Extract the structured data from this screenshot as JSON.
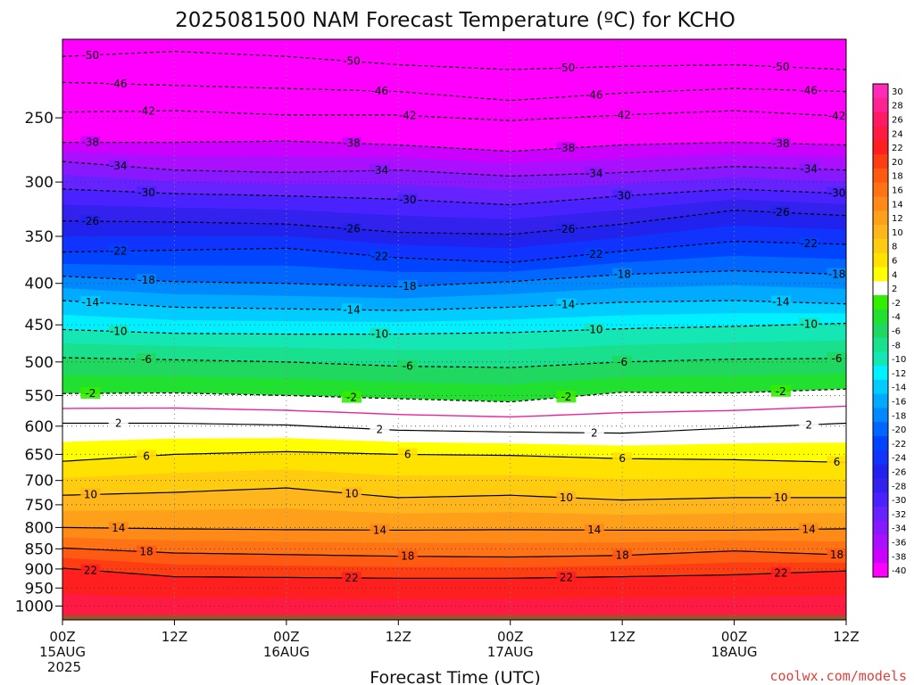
{
  "title": "2025081500 NAM Forecast Temperature (ºC) for KCHO",
  "xlabel": "Forecast Time (UTC)",
  "credit": "coolwx.com/models",
  "colors": {
    "credit": "#e0403a",
    "ground": "#a0522d",
    "freezing_line": "#e8239b"
  },
  "chart_data": {
    "type": "heatmap",
    "title": "2025081500 NAM Forecast Temperature (ºC) for KCHO",
    "xlabel": "Forecast Time (UTC)",
    "ylabel": "",
    "y_axis": "pressure (inverted)",
    "ylim": [
      1040,
      200
    ],
    "xlim_hours": [
      0,
      84
    ],
    "y_ticks": [
      250,
      300,
      350,
      400,
      450,
      500,
      550,
      600,
      650,
      700,
      750,
      800,
      850,
      900,
      950,
      1000
    ],
    "x_ticks": [
      {
        "hour": 0,
        "lines": [
          "00Z",
          "15AUG",
          "2025"
        ]
      },
      {
        "hour": 12,
        "lines": [
          "12Z"
        ]
      },
      {
        "hour": 24,
        "lines": [
          "00Z",
          "16AUG"
        ]
      },
      {
        "hour": 36,
        "lines": [
          "12Z"
        ]
      },
      {
        "hour": 48,
        "lines": [
          "00Z",
          "17AUG"
        ]
      },
      {
        "hour": 60,
        "lines": [
          "12Z"
        ]
      },
      {
        "hour": 72,
        "lines": [
          "00Z",
          "18AUG"
        ]
      },
      {
        "hour": 84,
        "lines": [
          "12Z"
        ]
      }
    ],
    "grid": true,
    "legend": "colorbar-right",
    "colorbar": {
      "labels": [
        "30",
        "28",
        "26",
        "24",
        "22",
        "20",
        "18",
        "16",
        "14",
        "12",
        "10",
        "8",
        "6",
        "4",
        "2",
        "-2",
        "-4",
        "-6",
        "-8",
        "-10",
        "-12",
        "-14",
        "-16",
        "-18",
        "-20",
        "-22",
        "-24",
        "-26",
        "-28",
        "-30",
        "-32",
        "-34",
        "-36",
        "-38",
        "-40"
      ],
      "colors": [
        "#ff2ab8",
        "#ff2290",
        "#ff1a66",
        "#ff1a44",
        "#ff1f1f",
        "#ff3d12",
        "#ff5a12",
        "#ff7314",
        "#ff8a18",
        "#ffa01a",
        "#ffb51c",
        "#ffcc10",
        "#ffe200",
        "#ffff00",
        "#ffffff",
        "#33ee00",
        "#22e030",
        "#20d860",
        "#19e08c",
        "#14e6b4",
        "#00f0ff",
        "#00ccff",
        "#00aaff",
        "#0088ff",
        "#0066ff",
        "#0044ff",
        "#1133ff",
        "#2222ee",
        "#3322ee",
        "#4a22ff",
        "#6622ff",
        "#8818ff",
        "#aa10ff",
        "#cc00ff",
        "#ff00ff"
      ]
    },
    "ground_below_hpa": 1000,
    "series": [
      {
        "value": -50,
        "labels": [
          "-50"
        ],
        "points": [
          [
            0,
            210
          ],
          [
            12,
            207
          ],
          [
            24,
            210
          ],
          [
            36,
            215
          ],
          [
            48,
            218
          ],
          [
            60,
            216
          ],
          [
            72,
            215
          ],
          [
            84,
            218
          ]
        ]
      },
      {
        "value": -46,
        "labels": [
          "-46"
        ],
        "points": [
          [
            0,
            226
          ],
          [
            12,
            228
          ],
          [
            24,
            230
          ],
          [
            36,
            232
          ],
          [
            48,
            238
          ],
          [
            60,
            233
          ],
          [
            72,
            230
          ],
          [
            84,
            232
          ]
        ]
      },
      {
        "value": -42,
        "labels": [
          "-42"
        ],
        "points": [
          [
            0,
            246
          ],
          [
            12,
            245
          ],
          [
            24,
            248
          ],
          [
            36,
            248
          ],
          [
            48,
            252
          ],
          [
            60,
            248
          ],
          [
            72,
            245
          ],
          [
            84,
            249
          ]
        ]
      },
      {
        "value": -38,
        "labels": [
          "-38"
        ],
        "points": [
          [
            0,
            268
          ],
          [
            12,
            268
          ],
          [
            24,
            267
          ],
          [
            36,
            270
          ],
          [
            48,
            275
          ],
          [
            60,
            270
          ],
          [
            72,
            268
          ],
          [
            84,
            270
          ]
        ]
      },
      {
        "value": -34,
        "labels": [
          "-34"
        ],
        "points": [
          [
            0,
            283
          ],
          [
            12,
            290
          ],
          [
            24,
            292
          ],
          [
            36,
            290
          ],
          [
            48,
            295
          ],
          [
            60,
            292
          ],
          [
            72,
            287
          ],
          [
            84,
            290
          ]
        ]
      },
      {
        "value": -30,
        "labels": [
          "-30"
        ],
        "points": [
          [
            0,
            306
          ],
          [
            12,
            310
          ],
          [
            24,
            312
          ],
          [
            36,
            315
          ],
          [
            48,
            320
          ],
          [
            60,
            312
          ],
          [
            72,
            306
          ],
          [
            84,
            310
          ]
        ]
      },
      {
        "value": -26,
        "labels": [
          "-26"
        ],
        "points": [
          [
            0,
            335
          ],
          [
            12,
            336
          ],
          [
            24,
            338
          ],
          [
            36,
            346
          ],
          [
            48,
            348
          ],
          [
            60,
            338
          ],
          [
            72,
            325
          ],
          [
            84,
            330
          ]
        ]
      },
      {
        "value": -22,
        "labels": [
          "-22"
        ],
        "points": [
          [
            0,
            366
          ],
          [
            12,
            364
          ],
          [
            24,
            362
          ],
          [
            36,
            372
          ],
          [
            48,
            377
          ],
          [
            60,
            365
          ],
          [
            72,
            355
          ],
          [
            84,
            358
          ]
        ]
      },
      {
        "value": -18,
        "labels": [
          "-18"
        ],
        "points": [
          [
            0,
            392
          ],
          [
            12,
            398
          ],
          [
            24,
            400
          ],
          [
            36,
            404
          ],
          [
            48,
            398
          ],
          [
            60,
            390
          ],
          [
            72,
            386
          ],
          [
            84,
            390
          ]
        ]
      },
      {
        "value": -14,
        "labels": [
          "-14"
        ],
        "points": [
          [
            0,
            420
          ],
          [
            12,
            428
          ],
          [
            24,
            430
          ],
          [
            36,
            432
          ],
          [
            48,
            428
          ],
          [
            60,
            422
          ],
          [
            72,
            420
          ],
          [
            84,
            424
          ]
        ]
      },
      {
        "value": -10,
        "labels": [
          "-10"
        ],
        "points": [
          [
            0,
            456
          ],
          [
            12,
            461
          ],
          [
            24,
            462
          ],
          [
            36,
            462
          ],
          [
            48,
            460
          ],
          [
            60,
            455
          ],
          [
            72,
            452
          ],
          [
            84,
            448
          ]
        ]
      },
      {
        "value": -6,
        "labels": [
          "-6"
        ],
        "points": [
          [
            0,
            494
          ],
          [
            12,
            497
          ],
          [
            24,
            500
          ],
          [
            36,
            506
          ],
          [
            48,
            508
          ],
          [
            60,
            500
          ],
          [
            72,
            496
          ],
          [
            84,
            495
          ]
        ]
      },
      {
        "value": -2,
        "labels": [
          "-2"
        ],
        "points": [
          [
            0,
            547
          ],
          [
            12,
            546
          ],
          [
            24,
            550
          ],
          [
            36,
            555
          ],
          [
            48,
            560
          ],
          [
            60,
            545
          ],
          [
            72,
            546
          ],
          [
            84,
            540
          ]
        ]
      },
      {
        "value": 2,
        "labels": [
          "2"
        ],
        "points": [
          [
            0,
            595
          ],
          [
            12,
            595
          ],
          [
            24,
            598
          ],
          [
            36,
            607
          ],
          [
            48,
            610
          ],
          [
            60,
            612
          ],
          [
            72,
            603
          ],
          [
            84,
            595
          ]
        ]
      },
      {
        "value": 6,
        "labels": [
          "6"
        ],
        "points": [
          [
            0,
            663
          ],
          [
            12,
            650
          ],
          [
            24,
            645
          ],
          [
            36,
            650
          ],
          [
            48,
            652
          ],
          [
            60,
            658
          ],
          [
            72,
            660
          ],
          [
            84,
            665
          ]
        ]
      },
      {
        "value": 10,
        "labels": [
          "10"
        ],
        "points": [
          [
            0,
            730
          ],
          [
            12,
            724
          ],
          [
            24,
            715
          ],
          [
            36,
            735
          ],
          [
            48,
            730
          ],
          [
            60,
            740
          ],
          [
            72,
            735
          ],
          [
            84,
            735
          ]
        ]
      },
      {
        "value": 14,
        "labels": [
          "14"
        ],
        "points": [
          [
            0,
            800
          ],
          [
            12,
            803
          ],
          [
            24,
            805
          ],
          [
            36,
            806
          ],
          [
            48,
            805
          ],
          [
            60,
            806
          ],
          [
            72,
            806
          ],
          [
            84,
            803
          ]
        ]
      },
      {
        "value": 18,
        "labels": [
          "18"
        ],
        "points": [
          [
            0,
            848
          ],
          [
            12,
            860
          ],
          [
            24,
            864
          ],
          [
            36,
            868
          ],
          [
            48,
            870
          ],
          [
            60,
            866
          ],
          [
            72,
            855
          ],
          [
            84,
            865
          ]
        ]
      },
      {
        "value": 22,
        "labels": [
          "22"
        ],
        "points": [
          [
            0,
            898
          ],
          [
            12,
            920
          ],
          [
            24,
            922
          ],
          [
            36,
            924
          ],
          [
            48,
            924
          ],
          [
            60,
            920
          ],
          [
            72,
            915
          ],
          [
            84,
            905
          ]
        ]
      }
    ]
  }
}
